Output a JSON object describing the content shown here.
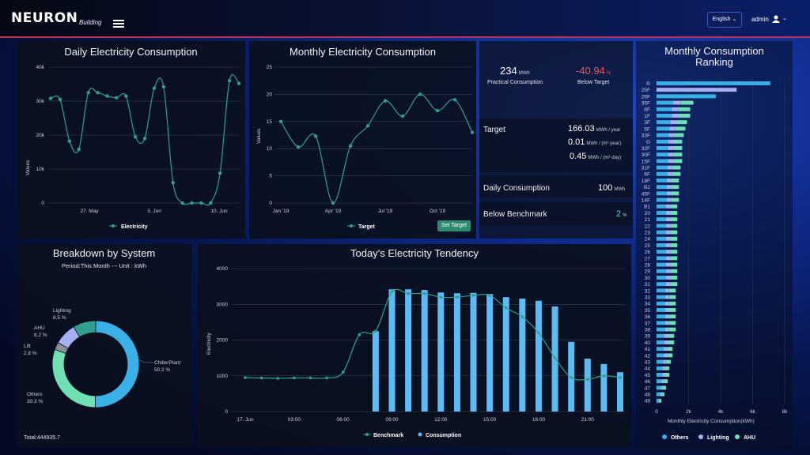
{
  "header": {
    "logo": "NEURON",
    "logo_sub": "Building",
    "language": "English",
    "user": "admin"
  },
  "daily": {
    "title": "Daily Electricity Consumption",
    "ylabel": "Values",
    "legend": "Electricity",
    "yticks": [
      "0",
      "10k",
      "20k",
      "30k",
      "40k"
    ],
    "xticks": [
      "27. May",
      "3. Jun",
      "10. Jun"
    ]
  },
  "monthly": {
    "title": "Monthly Electricity Consumption",
    "ylabel": "Values",
    "legend": "Target",
    "button": "Set Target",
    "yticks": [
      "0",
      "5",
      "10",
      "15",
      "20",
      "25"
    ],
    "xticks": [
      "Jan '19",
      "Apr '19",
      "Jul '19",
      "Oct '19"
    ]
  },
  "stats": {
    "practical_value": "234",
    "practical_unit": "MWh",
    "practical_label": "Practical Consumption",
    "below_value": "-40.94",
    "below_unit": "%",
    "below_label": "Below Target",
    "target_label": "Target",
    "target_v1": "166.03",
    "target_u1": "MWh / year",
    "target_v2": "0.01",
    "target_u2": "MWh / (m²·year)",
    "target_v3": "0.45",
    "target_u3": "MWh / (m²·day)",
    "daily_label": "Daily Consumption",
    "daily_value": "100",
    "daily_unit": "MWh",
    "bench_label": "Below Benchmark",
    "bench_value": "2",
    "bench_unit": "%"
  },
  "ranking": {
    "title": "Monthly Consumption Ranking",
    "xlabel": "Monthly Electricity Consumption(kWh)",
    "xticks": [
      "0",
      "2k",
      "4k",
      "6k",
      "8k"
    ],
    "legend": [
      "Others",
      "Lighting",
      "AHU"
    ]
  },
  "breakdown": {
    "title": "Breakdown by System",
    "subtitle": "Period:This Month --- Unit : kWh",
    "total": "Total:444935.7",
    "slices": [
      {
        "name": "ChillerPlant",
        "pct": "50.2 %"
      },
      {
        "name": "Others",
        "pct": "30.3 %"
      },
      {
        "name": "Lift",
        "pct": "2.8 %"
      },
      {
        "name": "AHU",
        "pct": "8.2 %"
      },
      {
        "name": "Lighting",
        "pct": "8.5 %"
      }
    ]
  },
  "tendency": {
    "title": "Today's Electricity Tendency",
    "ylabel": "Electricity",
    "yticks": [
      "0",
      "1000",
      "2000",
      "3000",
      "4000"
    ],
    "xticks": [
      "17. Jun",
      "03:00",
      "06:00",
      "09:00",
      "12:00",
      "15:00",
      "18:00",
      "21:00"
    ],
    "legend": [
      "Benchmark",
      "Consumption"
    ]
  },
  "colors": {
    "teal": "#2fa08f",
    "blue": "#5bbcf5",
    "lavender": "#a8b0f5",
    "mint": "#6ee0b4",
    "cyan": "#3ab0e8",
    "gray": "#8a8f99",
    "redtext": "#e05a5a",
    "greentext": "#5ed6a0"
  },
  "chart_data": [
    {
      "type": "line",
      "title": "Daily Electricity Consumption",
      "ylabel": "Values",
      "ylim": [
        0,
        40000
      ],
      "series": [
        {
          "name": "Electricity",
          "values": [
            30800,
            30500,
            18200,
            15800,
            32500,
            32500,
            31500,
            31000,
            31500,
            19500,
            19000,
            33800,
            34200,
            6000,
            0,
            0,
            0,
            0,
            8800,
            36000,
            35200
          ]
        }
      ]
    },
    {
      "type": "line",
      "title": "Monthly Electricity Consumption",
      "ylabel": "Values",
      "ylim": [
        0,
        25
      ],
      "categories": [
        "Jan",
        "Feb",
        "Mar",
        "Apr",
        "May",
        "Jun",
        "Jul",
        "Aug",
        "Sep",
        "Oct",
        "Nov",
        "Dec"
      ],
      "series": [
        {
          "name": "Target",
          "values": [
            15,
            10.3,
            12.3,
            0,
            10.5,
            14.2,
            18.8,
            16,
            20,
            17,
            19,
            13
          ]
        }
      ]
    },
    {
      "type": "bar",
      "title": "Monthly Consumption Ranking",
      "xlabel": "Monthly Electricity Consumption(kWh)",
      "xlim": [
        0,
        8000
      ],
      "categories": [
        "R",
        "25F",
        "26F",
        "35F",
        "8F",
        "1F",
        "3F",
        "5F",
        "33F",
        "G",
        "32F",
        "30F",
        "15F",
        "31F",
        "6F",
        "18F",
        "B2",
        "45F",
        "14F",
        "B1",
        "20",
        "21",
        "22",
        "23",
        "24",
        "25",
        "26",
        "27",
        "28",
        "29",
        "30",
        "31",
        "32",
        "33",
        "34",
        "35",
        "36",
        "37",
        "38",
        "39",
        "40",
        "41",
        "42",
        "43",
        "44",
        "45",
        "46",
        "47",
        "48",
        "49"
      ],
      "series": [
        {
          "name": "Others",
          "values": [
            7100,
            5000,
            3700,
            2300,
            2100,
            2100,
            1900,
            1800,
            1700,
            1600,
            1600,
            1600,
            1600,
            1500,
            1500,
            1400,
            1400,
            1400,
            1400,
            1300,
            1300,
            1300,
            1300,
            1300,
            1300,
            1300,
            1300,
            1300,
            1300,
            1300,
            1300,
            1300,
            1200,
            1200,
            1200,
            1200,
            1200,
            1200,
            1200,
            1100,
            1100,
            1000,
            1000,
            900,
            800,
            800,
            700,
            600,
            500,
            300
          ]
        },
        {
          "name": "Lighting",
          "values": [
            0,
            0,
            0,
            0,
            0,
            0,
            0,
            0,
            0,
            0,
            0,
            0,
            0,
            0,
            0,
            0,
            0,
            0,
            0,
            0,
            0,
            0,
            0,
            0,
            0,
            0,
            0,
            0,
            0,
            0,
            0,
            0,
            0,
            0,
            0,
            0,
            0,
            0,
            0,
            0,
            0,
            0,
            0,
            0,
            0,
            0,
            0,
            0,
            0,
            0
          ]
        },
        {
          "name": "AHU",
          "values": [
            0,
            0,
            0,
            0,
            0,
            0,
            0,
            0,
            0,
            0,
            0,
            0,
            0,
            0,
            0,
            0,
            0,
            0,
            0,
            0,
            0,
            0,
            0,
            0,
            0,
            0,
            0,
            0,
            0,
            0,
            0,
            0,
            0,
            0,
            0,
            0,
            0,
            0,
            0,
            0,
            0,
            0,
            0,
            0,
            0,
            0,
            0,
            0,
            0,
            0
          ]
        }
      ]
    },
    {
      "type": "pie",
      "title": "Breakdown by System",
      "categories": [
        "ChillerPlant",
        "Others",
        "Lift",
        "AHU",
        "Lighting"
      ],
      "values": [
        50.2,
        30.3,
        2.8,
        8.2,
        8.5
      ]
    },
    {
      "type": "bar",
      "title": "Today's Electricity Tendency",
      "ylabel": "Electricity",
      "ylim": [
        0,
        4000
      ],
      "categories": [
        "00:00",
        "01:00",
        "02:00",
        "03:00",
        "04:00",
        "05:00",
        "06:00",
        "07:00",
        "08:00",
        "09:00",
        "10:00",
        "11:00",
        "12:00",
        "13:00",
        "14:00",
        "15:00",
        "16:00",
        "17:00",
        "18:00",
        "19:00",
        "20:00",
        "21:00",
        "22:00",
        "23:00"
      ],
      "series": [
        {
          "name": "Benchmark",
          "type": "line",
          "values": [
            950,
            940,
            930,
            940,
            940,
            940,
            1100,
            2150,
            2250,
            3350,
            3300,
            3300,
            3200,
            3200,
            3250,
            3250,
            2900,
            2650,
            2200,
            1500,
            950,
            900,
            1000,
            950
          ]
        },
        {
          "name": "Consumption",
          "type": "bar",
          "values": [
            null,
            null,
            null,
            null,
            null,
            null,
            null,
            null,
            2250,
            3420,
            3420,
            3400,
            3330,
            3310,
            3320,
            3290,
            3200,
            3160,
            3100,
            2940,
            1950,
            1480,
            1330,
            1100
          ]
        }
      ]
    }
  ]
}
